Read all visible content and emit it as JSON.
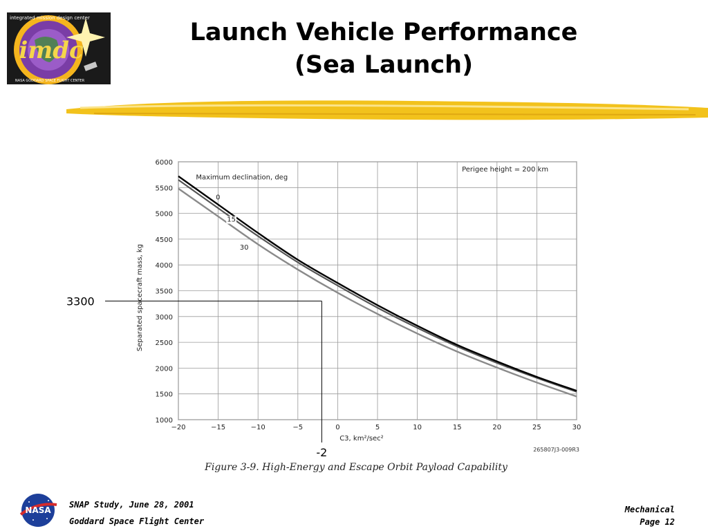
{
  "header": {
    "title_line1": "Launch Vehicle Performance",
    "title_line2": "(Sea Launch)",
    "logo_text": "imdc",
    "logo_ring_text": "integrated mission design center",
    "logo_ring_text_bottom": "NASA GODDARD SPACE FLIGHT CENTER"
  },
  "footer": {
    "line1": "SNAP Study, June 28, 2001",
    "line2": "Goddard Space Flight Center",
    "section": "Mechanical",
    "page": "Page 12",
    "nasa_logo_text": "NASA"
  },
  "colors": {
    "brush": "#f2c21c",
    "curve_0": "#000000",
    "curve_15": "#555555",
    "curve_30": "#8a8a8a",
    "grid": "#9a9a9a"
  },
  "chart_data": {
    "type": "line",
    "title": "",
    "caption": "Figure 3-9.  High-Energy and Escape Orbit Payload Capability",
    "xlabel": "C3, km²/sec²",
    "ylabel": "Separated spacecraft mass, kg",
    "xlim": [
      -20,
      30
    ],
    "ylim": [
      1000,
      6000
    ],
    "xticks": [
      -20,
      -15,
      -10,
      -5,
      0,
      5,
      10,
      15,
      20,
      25,
      30
    ],
    "xtick_labels": [
      "−20",
      "−15",
      "−10",
      "−5",
      "0",
      "5",
      "10",
      "15",
      "20",
      "25",
      "30"
    ],
    "yticks": [
      1000,
      1500,
      2000,
      2500,
      3000,
      3500,
      4000,
      4500,
      5000,
      5500,
      6000
    ],
    "ytick_labels": [
      "1000",
      "1500",
      "2000",
      "2500",
      "3000",
      "3500",
      "4000",
      "4500",
      "5000",
      "5500",
      "6000"
    ],
    "grid": true,
    "legend_title": "Maximum declination, deg",
    "note": "Perigee height = 200 km",
    "figure_id": "265807J3-009R3",
    "series": [
      {
        "name": "0",
        "x": [
          -20,
          -15,
          -10,
          -5,
          0,
          5,
          10,
          15,
          20,
          25,
          30
        ],
        "values": [
          5720,
          5170,
          4620,
          4100,
          3650,
          3220,
          2820,
          2450,
          2130,
          1830,
          1560
        ]
      },
      {
        "name": "15",
        "x": [
          -20,
          -15,
          -10,
          -5,
          0,
          5,
          10,
          15,
          20,
          25,
          30
        ],
        "values": [
          5650,
          5100,
          4560,
          4050,
          3600,
          3170,
          2780,
          2420,
          2100,
          1810,
          1540
        ]
      },
      {
        "name": "30",
        "x": [
          -20,
          -15,
          -10,
          -5,
          0,
          5,
          10,
          15,
          20,
          25,
          30
        ],
        "values": [
          5480,
          4940,
          4400,
          3910,
          3460,
          3050,
          2670,
          2320,
          2010,
          1720,
          1450
        ]
      }
    ],
    "series_labels": [
      {
        "text": "0",
        "x": -15.3,
        "y": 5270
      },
      {
        "text": "15",
        "x": -13.9,
        "y": 4840
      },
      {
        "text": "30",
        "x": -12.3,
        "y": 4300
      }
    ],
    "annotations": [
      {
        "type": "hline",
        "label": "3300",
        "y": 3300,
        "x_to": -2
      },
      {
        "type": "vline",
        "label": "-2",
        "x": -2,
        "y_from": 3300
      }
    ]
  }
}
